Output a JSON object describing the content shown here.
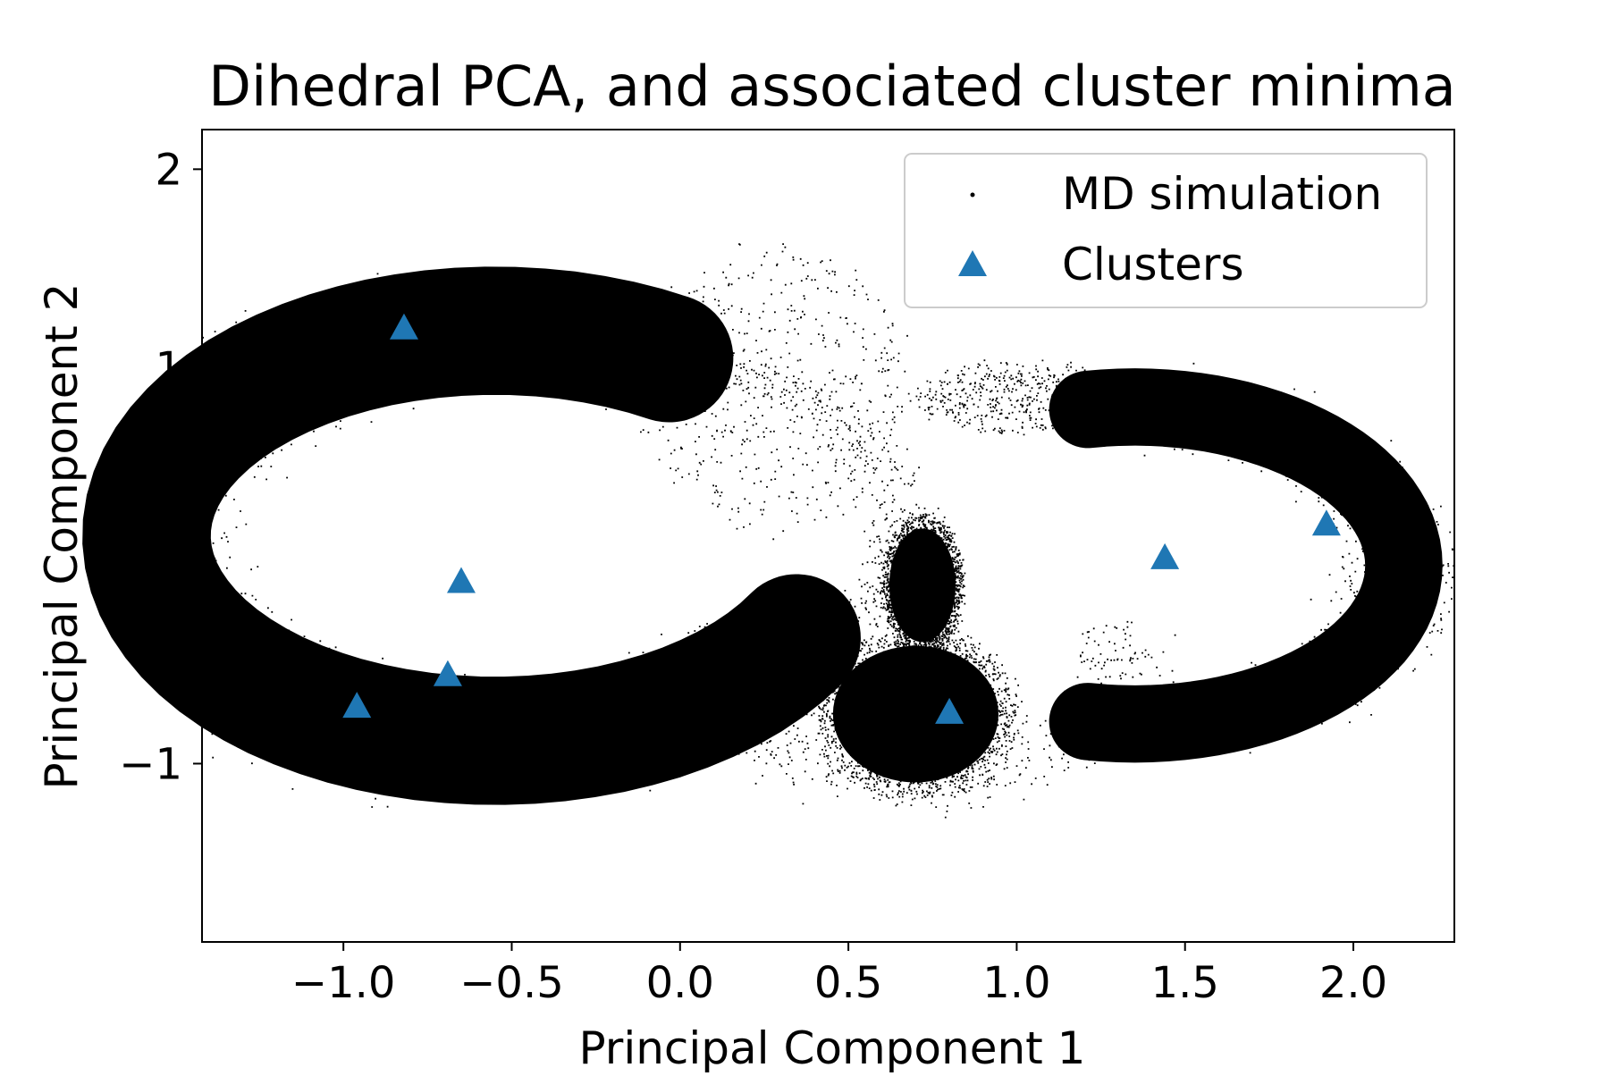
{
  "chart_data": {
    "type": "scatter",
    "title": "Dihedral PCA, and associated cluster minima",
    "xlabel": "Principal Component 1",
    "ylabel": "Principal Component 2",
    "xlim": [
      -1.42,
      2.3
    ],
    "ylim": [
      -1.9,
      2.2
    ],
    "xticks": [
      -1.0,
      -0.5,
      0.0,
      0.5,
      1.0,
      1.5,
      2.0
    ],
    "xtick_labels": [
      "−1.0",
      "−0.5",
      "0.0",
      "0.5",
      "1.0",
      "1.5",
      "2.0"
    ],
    "yticks": [
      -1,
      0,
      1,
      2
    ],
    "ytick_labels": [
      "−1",
      "0",
      "1",
      "2"
    ],
    "grid": false,
    "legend_position": "top-right",
    "series": [
      {
        "name": "MD simulation",
        "marker": "dot",
        "color": "#000000",
        "regions": [
          {
            "kind": "ring",
            "cx": -0.55,
            "cy": 0.15,
            "r_inner": 0.62,
            "r_outer": 1.45,
            "theta_from": 60,
            "theta_to": 330,
            "density": "dense"
          },
          {
            "kind": "ring",
            "cx": -0.25,
            "cy": 0.2,
            "r_inner": 0.75,
            "r_outer": 1.05,
            "theta_from": -60,
            "theta_to": 80,
            "density": "sparse"
          },
          {
            "kind": "blob",
            "cx": 0.7,
            "cy": -0.75,
            "rx": 0.3,
            "ry": 0.42,
            "density": "dense"
          },
          {
            "kind": "blob",
            "cx": 0.72,
            "cy": -0.1,
            "rx": 0.12,
            "ry": 0.35,
            "density": "dense"
          },
          {
            "kind": "ring",
            "cx": 0.7,
            "cy": -0.5,
            "r_inner": 0.4,
            "r_outer": 0.8,
            "theta_from": -200,
            "theta_to": 20,
            "density": "sparse"
          },
          {
            "kind": "ring",
            "cx": 1.35,
            "cy": 0.0,
            "r_inner": 0.55,
            "r_outer": 1.05,
            "theta_from": -100,
            "theta_to": 100,
            "density": "dense"
          },
          {
            "kind": "blob",
            "cx": 1.0,
            "cy": 0.85,
            "rx": 0.3,
            "ry": 0.18,
            "density": "sparse"
          },
          {
            "kind": "blob",
            "cx": 0.28,
            "cy": 0.9,
            "rx": 0.4,
            "ry": 0.7,
            "density": "sparse"
          }
        ]
      },
      {
        "name": "Clusters",
        "marker": "triangle",
        "color": "#1f77b4",
        "points": [
          {
            "x": -0.82,
            "y": 1.2
          },
          {
            "x": -0.65,
            "y": -0.08
          },
          {
            "x": -0.69,
            "y": -0.55
          },
          {
            "x": -0.96,
            "y": -0.71
          },
          {
            "x": 0.8,
            "y": -0.74
          },
          {
            "x": 1.44,
            "y": 0.04
          },
          {
            "x": 1.92,
            "y": 0.21
          }
        ]
      }
    ]
  }
}
